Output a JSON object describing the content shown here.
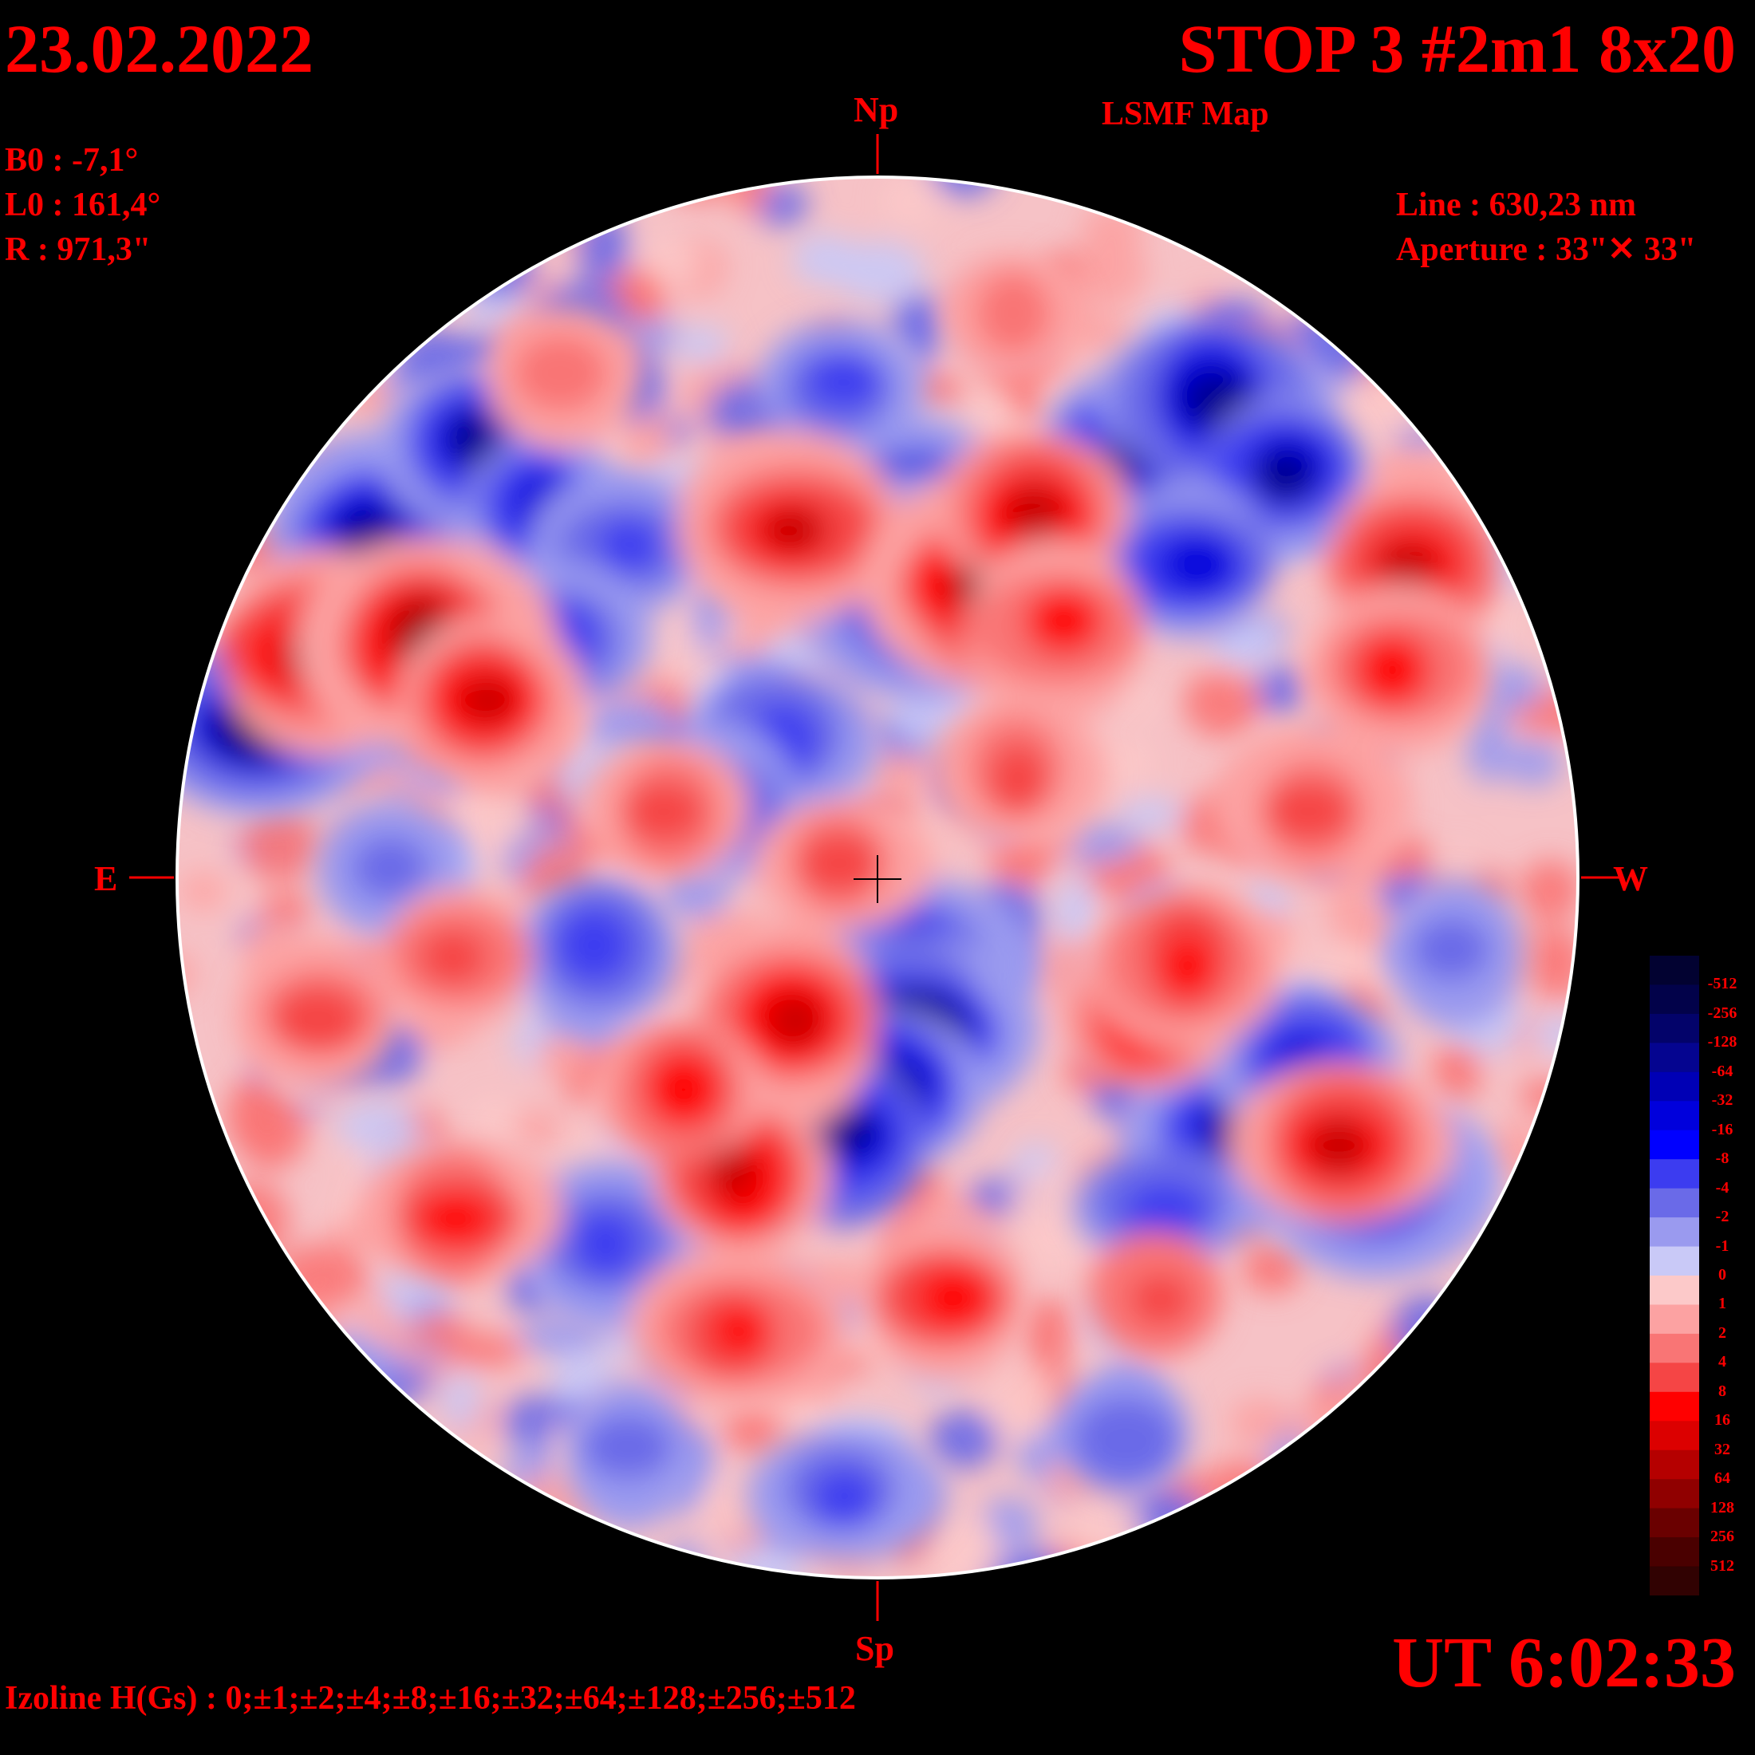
{
  "header": {
    "date": "23.02.2022",
    "title": "STOP 3 #2m1 8x20",
    "subtitle": "LSMF  Map"
  },
  "params": {
    "b0": "B0 : -7,1°",
    "l0": "L0 : 161,4°",
    "radius": "R  : 971,3\"",
    "line": "Line :  630,23 nm",
    "aperture": "Aperture : 33\"✕ 33\""
  },
  "directions": {
    "north": "Np",
    "south": "Sp",
    "east": "E",
    "west": "W"
  },
  "footer": {
    "time": "UT 6:02:33",
    "izoline": "Izoline H(Gs) : 0;±1;±2;±4;±8;±16;±32;±64;±128;±256;±512"
  },
  "legend": {
    "labels": [
      "-512",
      "-256",
      "-128",
      "-64",
      "-32",
      "-16",
      "-8",
      "-4",
      "-2",
      "-1",
      "0",
      "1",
      "2",
      "4",
      "8",
      "16",
      "32",
      "64",
      "128",
      "256",
      "512"
    ],
    "colors": [
      "#020231",
      "#02024a",
      "#03036a",
      "#050590",
      "#0000b5",
      "#0000dc",
      "#0000ff",
      "#3c3cf0",
      "#6a6ae8",
      "#9a9aef",
      "#c9c9f7",
      "#fcc9c9",
      "#fca2a2",
      "#f97575",
      "#f54545",
      "#ff0000",
      "#dc0000",
      "#b50000",
      "#900000",
      "#6a0000",
      "#4a0000",
      "#310202"
    ]
  },
  "features": {
    "negative": [
      {
        "lon": -0.88,
        "lat": 0.22,
        "level": 5
      },
      {
        "lon": -0.72,
        "lat": 0.49,
        "level": 4
      },
      {
        "lon": -0.58,
        "lat": 0.62,
        "level": 4
      },
      {
        "lon": -0.48,
        "lat": 0.53,
        "level": 3
      },
      {
        "lon": -0.36,
        "lat": 0.48,
        "level": 2
      },
      {
        "lon": 0.05,
        "lat": 0.52,
        "level": 5
      },
      {
        "lon": 0.07,
        "lat": 0.42,
        "level": 5
      },
      {
        "lon": -0.05,
        "lat": 0.7,
        "level": 2
      },
      {
        "lon": 0.36,
        "lat": 0.6,
        "level": 4
      },
      {
        "lon": 0.48,
        "lat": 0.68,
        "level": 4
      },
      {
        "lon": 0.58,
        "lat": 0.58,
        "level": 4
      },
      {
        "lon": 0.45,
        "lat": 0.45,
        "level": 3
      },
      {
        "lon": -0.45,
        "lat": 0.34,
        "level": 2
      },
      {
        "lon": -0.14,
        "lat": 0.2,
        "level": 2
      },
      {
        "lon": -0.22,
        "lat": 0.1,
        "level": 2
      },
      {
        "lon": 0.05,
        "lat": -0.12,
        "level": 4
      },
      {
        "lon": 0.05,
        "lat": -0.22,
        "level": 5
      },
      {
        "lon": -0.01,
        "lat": -0.3,
        "level": 5
      },
      {
        "lon": -0.05,
        "lat": -0.37,
        "level": 4
      },
      {
        "lon": 0.51,
        "lat": -0.36,
        "level": 4
      },
      {
        "lon": 0.61,
        "lat": -0.26,
        "level": 3
      },
      {
        "lon": 0.71,
        "lat": -0.43,
        "level": 4
      },
      {
        "lon": 0.41,
        "lat": -0.47,
        "level": 2
      },
      {
        "lon": -0.4,
        "lat": -0.1,
        "level": 2
      },
      {
        "lon": -0.7,
        "lat": 0.02,
        "level": 1
      },
      {
        "lon": -0.38,
        "lat": -0.52,
        "level": 2
      },
      {
        "lon": -0.05,
        "lat": -0.88,
        "level": 2
      },
      {
        "lon": -0.35,
        "lat": -0.82,
        "level": 1
      },
      {
        "lon": 0.35,
        "lat": -0.8,
        "level": 1
      },
      {
        "lon": 0.82,
        "lat": -0.1,
        "level": 1
      }
    ],
    "positive": [
      {
        "lon": -0.8,
        "lat": 0.32,
        "level": 5
      },
      {
        "lon": -0.65,
        "lat": 0.34,
        "level": 5
      },
      {
        "lon": -0.56,
        "lat": 0.25,
        "level": 4
      },
      {
        "lon": -0.12,
        "lat": 0.5,
        "level": 4
      },
      {
        "lon": 0.15,
        "lat": 0.42,
        "level": 5
      },
      {
        "lon": 0.22,
        "lat": 0.52,
        "level": 4
      },
      {
        "lon": 0.26,
        "lat": 0.36,
        "level": 3
      },
      {
        "lon": 0.76,
        "lat": 0.45,
        "level": 4
      },
      {
        "lon": 0.74,
        "lat": 0.3,
        "level": 3
      },
      {
        "lon": -0.12,
        "lat": -0.2,
        "level": 4
      },
      {
        "lon": -0.2,
        "lat": -0.42,
        "level": 4
      },
      {
        "lon": -0.28,
        "lat": -0.3,
        "level": 3
      },
      {
        "lon": 0.38,
        "lat": -0.2,
        "level": 4
      },
      {
        "lon": 0.44,
        "lat": -0.12,
        "level": 3
      },
      {
        "lon": 0.66,
        "lat": -0.38,
        "level": 4
      },
      {
        "lon": -0.6,
        "lat": -0.48,
        "level": 3
      },
      {
        "lon": -0.2,
        "lat": -0.65,
        "level": 3
      },
      {
        "lon": 0.1,
        "lat": -0.6,
        "level": 3
      },
      {
        "lon": 0.4,
        "lat": -0.6,
        "level": 2
      },
      {
        "lon": -0.6,
        "lat": -0.12,
        "level": 2
      },
      {
        "lon": -0.3,
        "lat": 0.1,
        "level": 2
      },
      {
        "lon": 0.2,
        "lat": 0.15,
        "level": 2
      },
      {
        "lon": 0.62,
        "lat": 0.1,
        "level": 2
      },
      {
        "lon": -0.45,
        "lat": 0.72,
        "level": 1
      },
      {
        "lon": 0.2,
        "lat": 0.8,
        "level": 1
      },
      {
        "lon": -0.8,
        "lat": -0.2,
        "level": 2
      },
      {
        "lon": -0.05,
        "lat": 0.02,
        "level": 2
      }
    ]
  }
}
